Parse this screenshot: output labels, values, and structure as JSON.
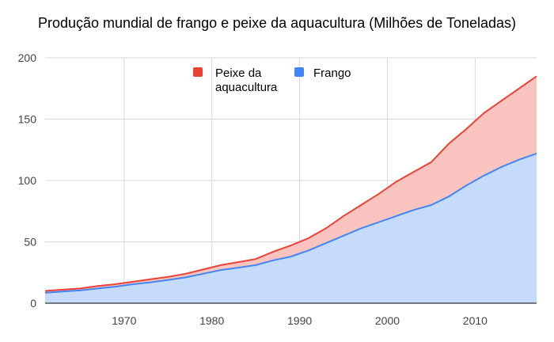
{
  "chart_data": {
    "type": "area",
    "stacked": true,
    "title": "Produção mundial de frango e peixe da aquacultura (Milhões de Toneladas)",
    "xlabel": "",
    "ylabel": "",
    "xlim": [
      1961,
      2017
    ],
    "ylim": [
      0,
      200
    ],
    "xticks": [
      "1970",
      "1980",
      "1990",
      "2000",
      "2010"
    ],
    "xtick_values": [
      1970,
      1980,
      1990,
      2000,
      2010
    ],
    "yticks": [
      "0",
      "50",
      "100",
      "150",
      "200"
    ],
    "ytick_values": [
      0,
      50,
      100,
      150,
      200
    ],
    "grid": true,
    "legend_position": "top-center",
    "x": [
      1961,
      1963,
      1965,
      1967,
      1969,
      1971,
      1973,
      1975,
      1977,
      1979,
      1981,
      1983,
      1985,
      1987,
      1989,
      1991,
      1993,
      1995,
      1997,
      1999,
      2001,
      2003,
      2005,
      2007,
      2009,
      2011,
      2013,
      2015,
      2017
    ],
    "series": [
      {
        "name": "Frango",
        "color": "#4285f4",
        "fill": "#c6dafc",
        "values": [
          8.5,
          9.5,
          10.5,
          12,
          13.5,
          15.5,
          17,
          19,
          21,
          24,
          27,
          29,
          31,
          35,
          38,
          43,
          49,
          55,
          61,
          66,
          71,
          76,
          80,
          87,
          96,
          104,
          111,
          117,
          122
        ]
      },
      {
        "name": "Peixe da aquacultura",
        "color": "#ea4335",
        "fill": "#f9c4c0",
        "values": [
          1.5,
          1.5,
          1.5,
          2,
          2,
          2,
          2.5,
          2.5,
          3,
          3.5,
          4,
          4.5,
          5,
          7,
          9,
          10,
          12,
          16,
          19,
          23,
          28,
          31,
          35,
          43,
          46,
          51,
          54,
          58,
          63
        ]
      }
    ]
  }
}
